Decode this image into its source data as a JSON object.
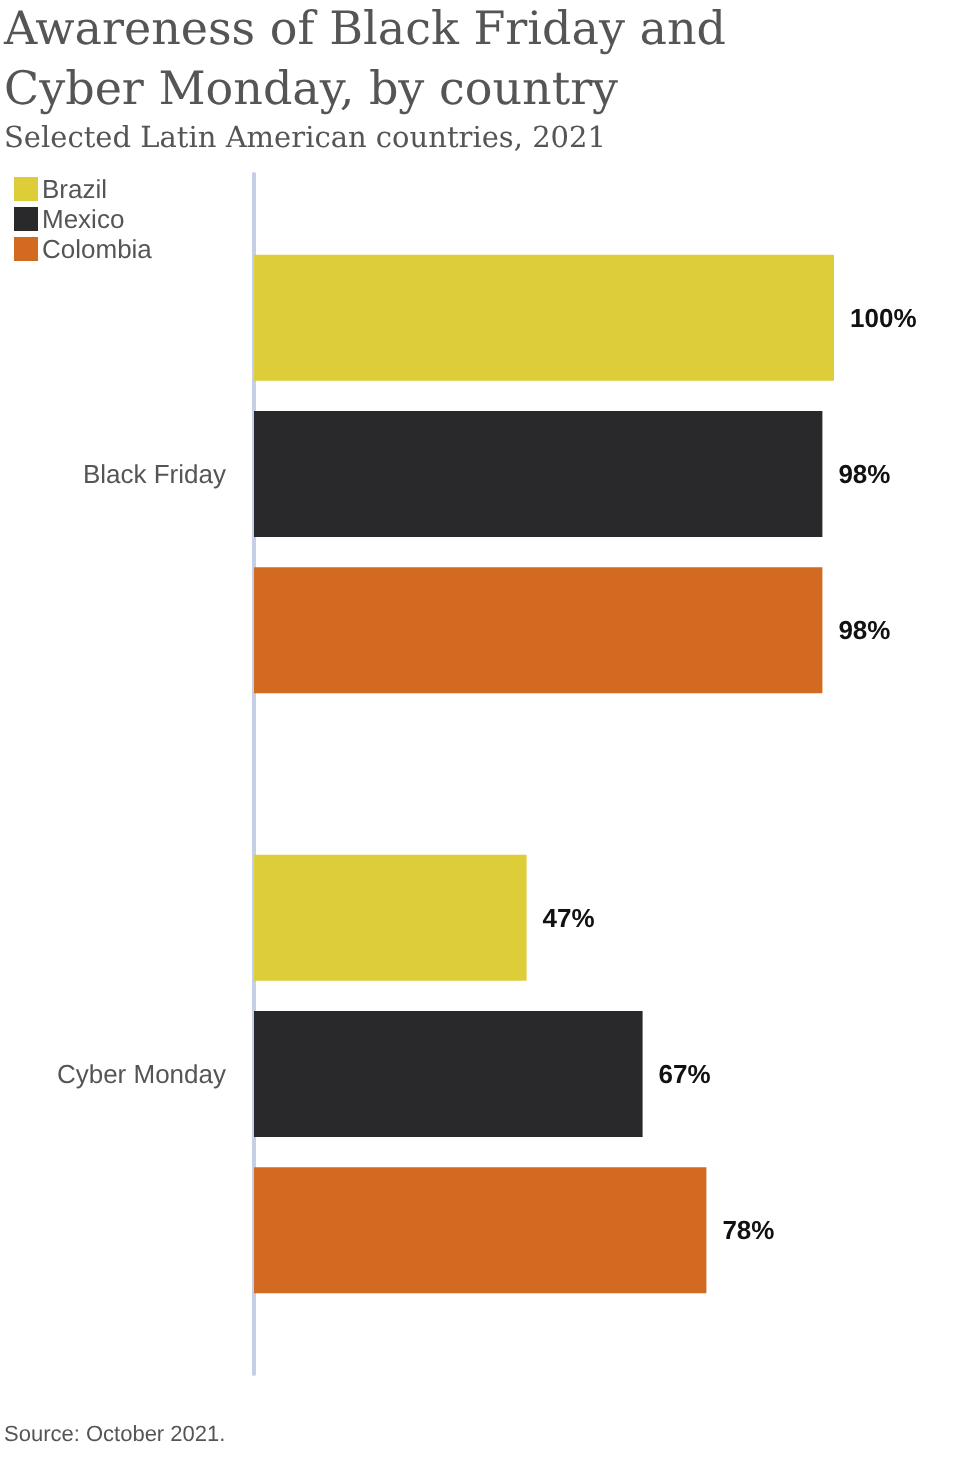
{
  "chart_data": {
    "type": "bar",
    "orientation": "horizontal",
    "title": "Awareness of Black Friday and Cyber Monday, by country",
    "subtitle": "Selected Latin American countries, 2021",
    "categories": [
      "Black Friday",
      "Cyber Monday"
    ],
    "series": [
      {
        "name": "Brazil",
        "color": "#ddcd38",
        "values": [
          100,
          47
        ],
        "value_labels": [
          "100%",
          "47%"
        ]
      },
      {
        "name": "Mexico",
        "color": "#29292b",
        "values": [
          98,
          67
        ],
        "value_labels": [
          "98%",
          "67%"
        ]
      },
      {
        "name": "Colombia",
        "color": "#d36a22",
        "values": [
          98,
          78
        ],
        "value_labels": [
          "98%",
          "78%"
        ]
      }
    ],
    "legend": "top left",
    "annotations": [
      "Source: October 2021."
    ]
  }
}
